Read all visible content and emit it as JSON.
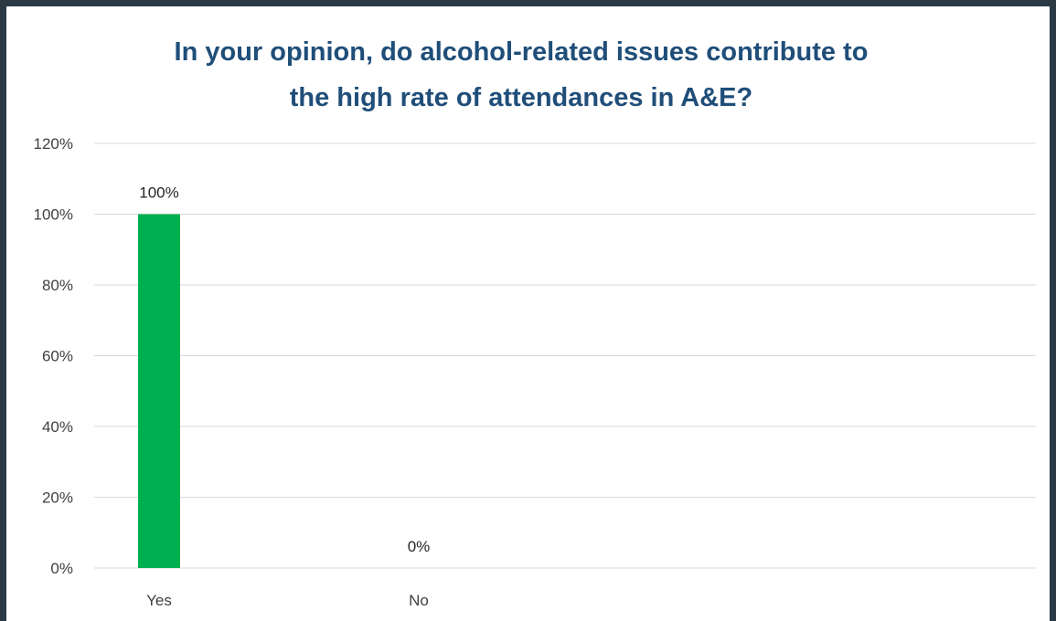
{
  "chart_data": {
    "type": "bar",
    "title_lines": [
      "In your opinion, do alcohol-related issues contribute to",
      "the high rate of attendances in A&E?"
    ],
    "categories": [
      "Yes",
      "No"
    ],
    "values": [
      100,
      0
    ],
    "data_labels": [
      "100%",
      "0%"
    ],
    "ylim": [
      0,
      120
    ],
    "yticks": [
      0,
      20,
      40,
      60,
      80,
      100,
      120
    ],
    "ytick_labels": [
      "0%",
      "20%",
      "40%",
      "60%",
      "80%",
      "100%",
      "120%"
    ],
    "grid": true,
    "bar_color": "#00b050",
    "grid_color": "#d9d9d9",
    "title_color": "#1f4e79",
    "frame_color": "#2b3944"
  }
}
